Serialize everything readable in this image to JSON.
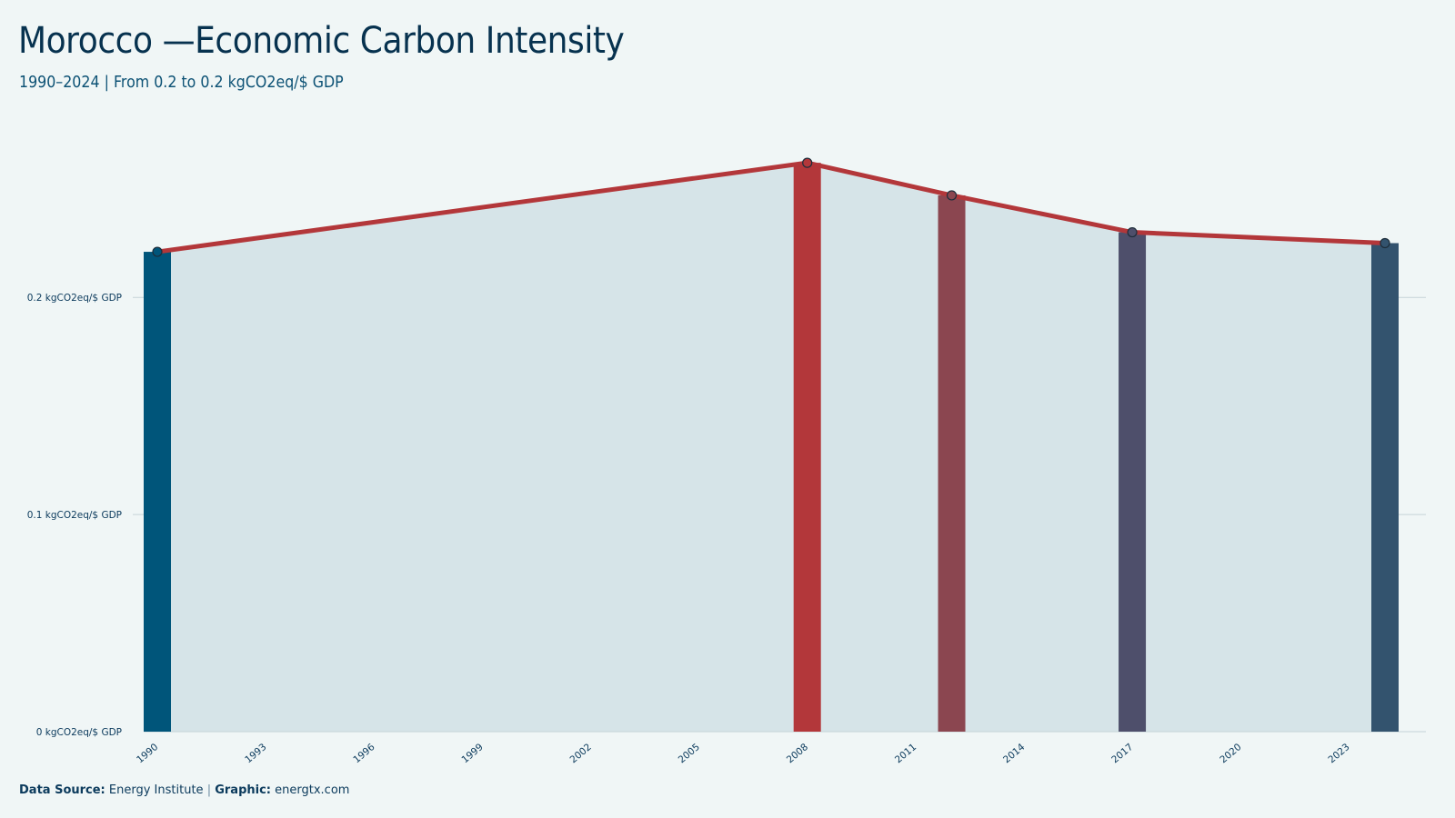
{
  "chart_data": {
    "type": "bar",
    "title": "Morocco —Economic Carbon Intensity",
    "subtitle": "1990–2024 | From 0.2 to 0.2 kgCO2eq/$ GDP",
    "x_range": [
      1990,
      2024
    ],
    "x_ticks": [
      "1990",
      "1993",
      "1996",
      "1999",
      "2002",
      "2005",
      "2008",
      "2011",
      "2014",
      "2017",
      "2020",
      "2023"
    ],
    "y_ticks": [
      {
        "value": 0,
        "label": "0 kgCO2eq/$ GDP"
      },
      {
        "value": 0.1,
        "label": "0.1 kgCO2eq/$ GDP"
      },
      {
        "value": 0.2,
        "label": "0.2 kgCO2eq/$ GDP"
      }
    ],
    "ylim": [
      0,
      0.27
    ],
    "grid": true,
    "area_color": "#d6e4e8",
    "line_color": "#b3373a",
    "points": [
      {
        "x": 1990,
        "y": 0.221,
        "color": "#00557a"
      },
      {
        "x": 2008,
        "y": 0.262,
        "color": "#b3373a"
      },
      {
        "x": 2012,
        "y": 0.247,
        "color": "#8b4650"
      },
      {
        "x": 2017,
        "y": 0.23,
        "color": "#4e4f6b"
      },
      {
        "x": 2024,
        "y": 0.225,
        "color": "#33536e"
      }
    ]
  },
  "footer": {
    "source_label": "Data Source:",
    "source_value": "Energy Institute",
    "separator": "|",
    "graphic_label": "Graphic:",
    "graphic_value": "energtx.com"
  }
}
